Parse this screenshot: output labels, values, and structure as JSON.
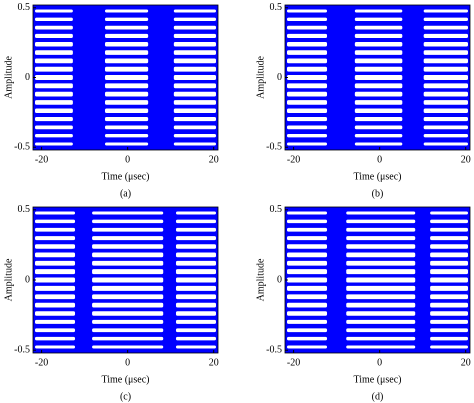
{
  "chart_data": [
    {
      "type": "eye",
      "xlabel": "Time (μsec)",
      "ylabel": "Amplitude",
      "caption": "(a)",
      "color": "#0000ff",
      "xlim": [
        -22,
        21
      ],
      "ylim": [
        -0.52,
        0.52
      ],
      "xticks": [
        -20,
        0,
        20
      ],
      "yticks": [
        -0.5,
        0,
        0.5
      ]
    },
    {
      "type": "eye",
      "xlabel": "Time (μsec)",
      "ylabel": "Amplitude",
      "caption": "(b)",
      "color": "#0000ff",
      "xlim": [
        -22,
        21
      ],
      "ylim": [
        -0.52,
        0.52
      ],
      "xticks": [
        -20,
        0,
        20
      ],
      "yticks": [
        -0.5,
        0,
        0.5
      ]
    },
    {
      "type": "eye",
      "xlabel": "Time (μsec)",
      "ylabel": "Amplitude",
      "caption": "(c)",
      "color": "#0000ff",
      "xlim": [
        -22,
        21
      ],
      "ylim": [
        -0.52,
        0.52
      ],
      "xticks": [
        -20,
        0,
        20
      ],
      "yticks": [
        -0.5,
        0,
        0.5
      ]
    },
    {
      "type": "eye",
      "xlabel": "Time (μsec)",
      "ylabel": "Amplitude",
      "caption": "(d)",
      "color": "#0000ff",
      "xlim": [
        -22,
        21
      ],
      "ylim": [
        -0.52,
        0.52
      ],
      "xticks": [
        -20,
        0,
        20
      ],
      "yticks": [
        -0.5,
        0,
        0.5
      ]
    }
  ]
}
